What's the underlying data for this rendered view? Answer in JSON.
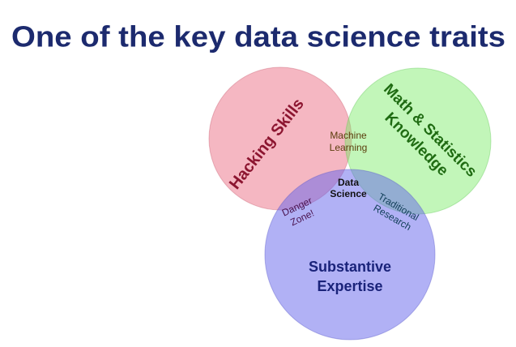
{
  "header": {
    "title": "One of the key data science traits"
  },
  "sets": [
    {
      "label": [
        "Hacking Skills"
      ]
    },
    {
      "label": [
        "Math & Statistics",
        "Knowledge"
      ]
    },
    {
      "label": [
        "Substantive",
        "Expertise"
      ]
    }
  ],
  "intersections": [
    {
      "label": [
        "Machine",
        "Learning"
      ]
    },
    {
      "label": [
        "Danger",
        "Zone!"
      ]
    },
    {
      "label": [
        "Traditional",
        "Research"
      ]
    },
    {
      "label": [
        "Data",
        "Science"
      ]
    }
  ]
}
